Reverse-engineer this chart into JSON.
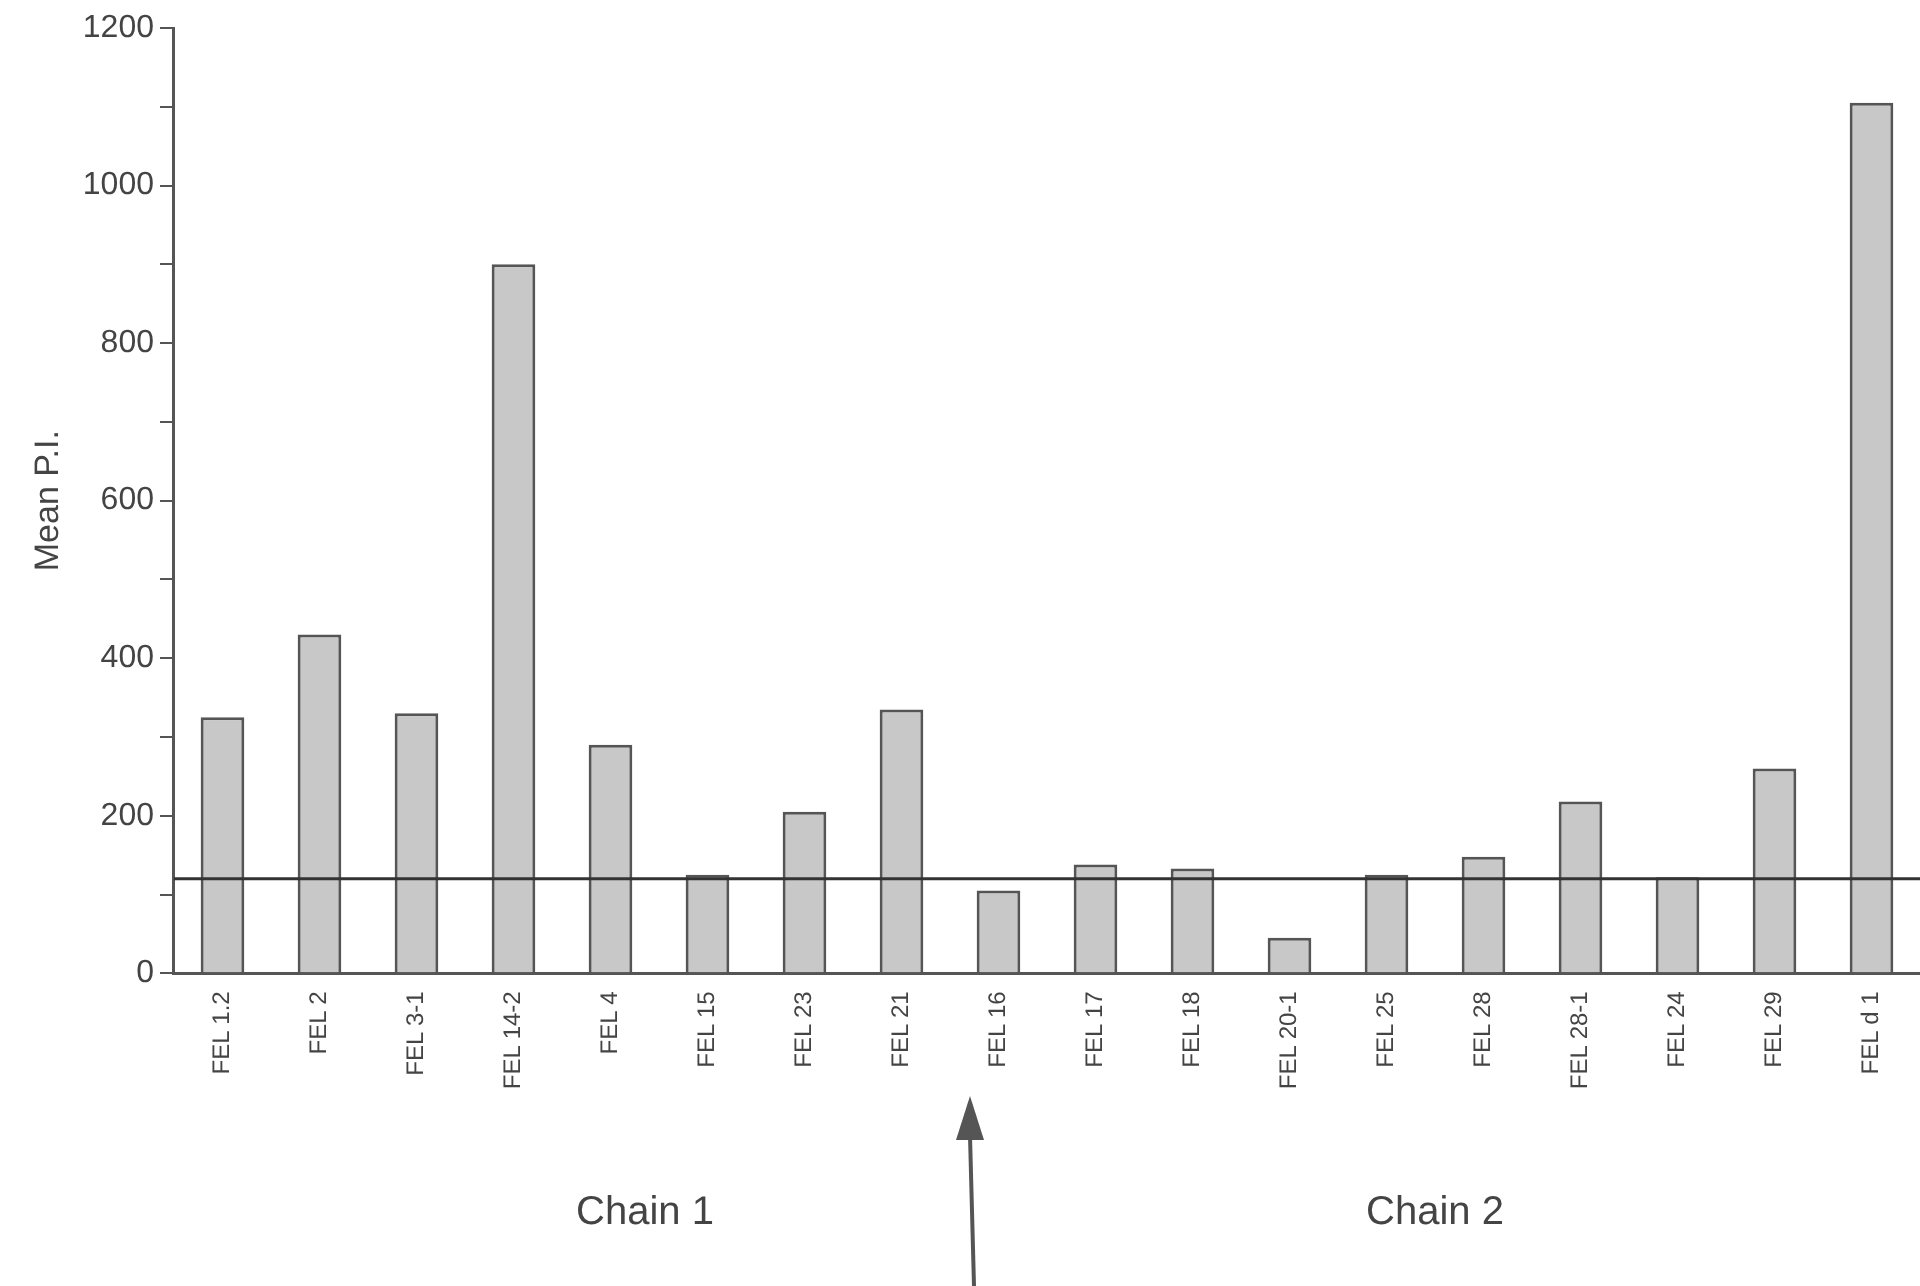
{
  "chart_data": {
    "type": "bar",
    "ylabel": "Mean P.I.",
    "categories": [
      "FEL 1.2",
      "FEL 2",
      "FEL 3-1",
      "FEL 14-2",
      "FEL 4",
      "FEL 15",
      "FEL 23",
      "FEL 21",
      "FEL 16",
      "FEL 17",
      "FEL 18",
      "FEL 20-1",
      "FEL 25",
      "FEL 28",
      "FEL 28-1",
      "FEL 24",
      "FEL 29",
      "FEL d 1"
    ],
    "values": [
      325,
      430,
      330,
      900,
      290,
      125,
      205,
      335,
      105,
      138,
      133,
      45,
      125,
      148,
      218,
      122,
      260,
      1105
    ],
    "color": "#c8c8c8",
    "ylim": [
      0,
      1200
    ],
    "yticks": [
      0,
      {
        "value": 100,
        "label": null
      },
      200,
      {
        "value": 300,
        "label": null
      },
      400,
      {
        "value": 500,
        "label": null
      },
      600,
      {
        "value": 700,
        "label": null
      },
      800,
      {
        "value": 900,
        "label": null
      },
      1000,
      {
        "value": 1100,
        "label": null
      },
      1200
    ],
    "ref_lines": [
      {
        "axis": "y",
        "value": 120,
        "color": "#333333"
      }
    ],
    "annotations": [
      "Chain 1",
      "Chain 2"
    ],
    "grid": false,
    "legend": false
  }
}
